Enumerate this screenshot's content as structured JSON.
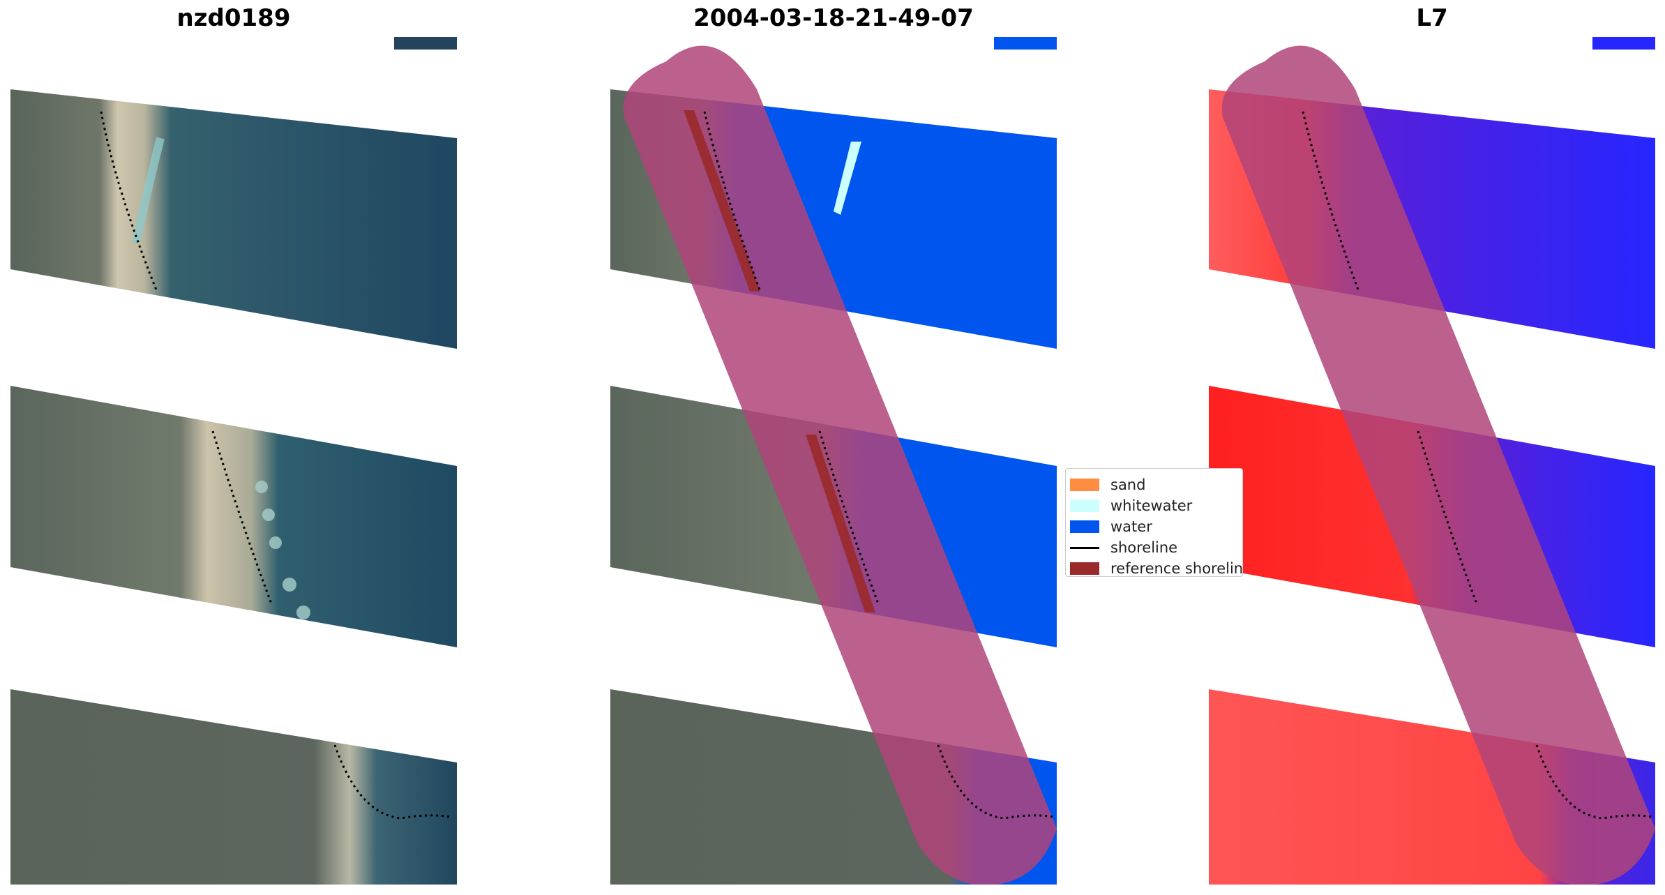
{
  "panels": [
    {
      "title": "nzd0189",
      "kind": "rgb"
    },
    {
      "title": "2004-03-18-21-49-07",
      "kind": "classified"
    },
    {
      "title": "L7",
      "kind": "index"
    }
  ],
  "legend": {
    "items": [
      {
        "label": "sand",
        "color": "#ff8c40",
        "type": "patch"
      },
      {
        "label": "whitewater",
        "color": "#ccffff",
        "type": "patch"
      },
      {
        "label": "water",
        "color": "#0055ee",
        "type": "patch"
      },
      {
        "label": "shoreline",
        "color": "#000000",
        "type": "line"
      },
      {
        "label": "reference shoreline",
        "color": "#9a2a2a",
        "type": "patch"
      }
    ]
  },
  "colors": {
    "land": "#5f6b5f",
    "sea": "#1f4a63",
    "sand": "#c8bfa8",
    "water_class": "#0055ee",
    "reference_buffer": "#b0447a",
    "index_land": "#ff4a4a",
    "index_water": "#2626ff"
  }
}
